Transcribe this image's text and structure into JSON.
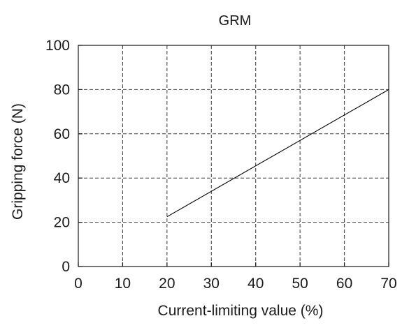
{
  "chart_data": {
    "type": "line",
    "title": "GRM",
    "xlabel": "Current-limiting value (%)",
    "ylabel": "Gripping force (N)",
    "xlim": [
      0,
      70
    ],
    "ylim": [
      0,
      100
    ],
    "xticks": [
      0,
      10,
      20,
      30,
      40,
      50,
      60,
      70
    ],
    "yticks": [
      0,
      20,
      40,
      60,
      80,
      100
    ],
    "grid": true,
    "grid_style": "dashed",
    "series": [
      {
        "x": [
          20,
          70
        ],
        "y": [
          22.5,
          80
        ]
      }
    ],
    "colors": {
      "line": "#000000",
      "grid": "#3a3a3a",
      "axis": "#1a1a1a"
    }
  }
}
